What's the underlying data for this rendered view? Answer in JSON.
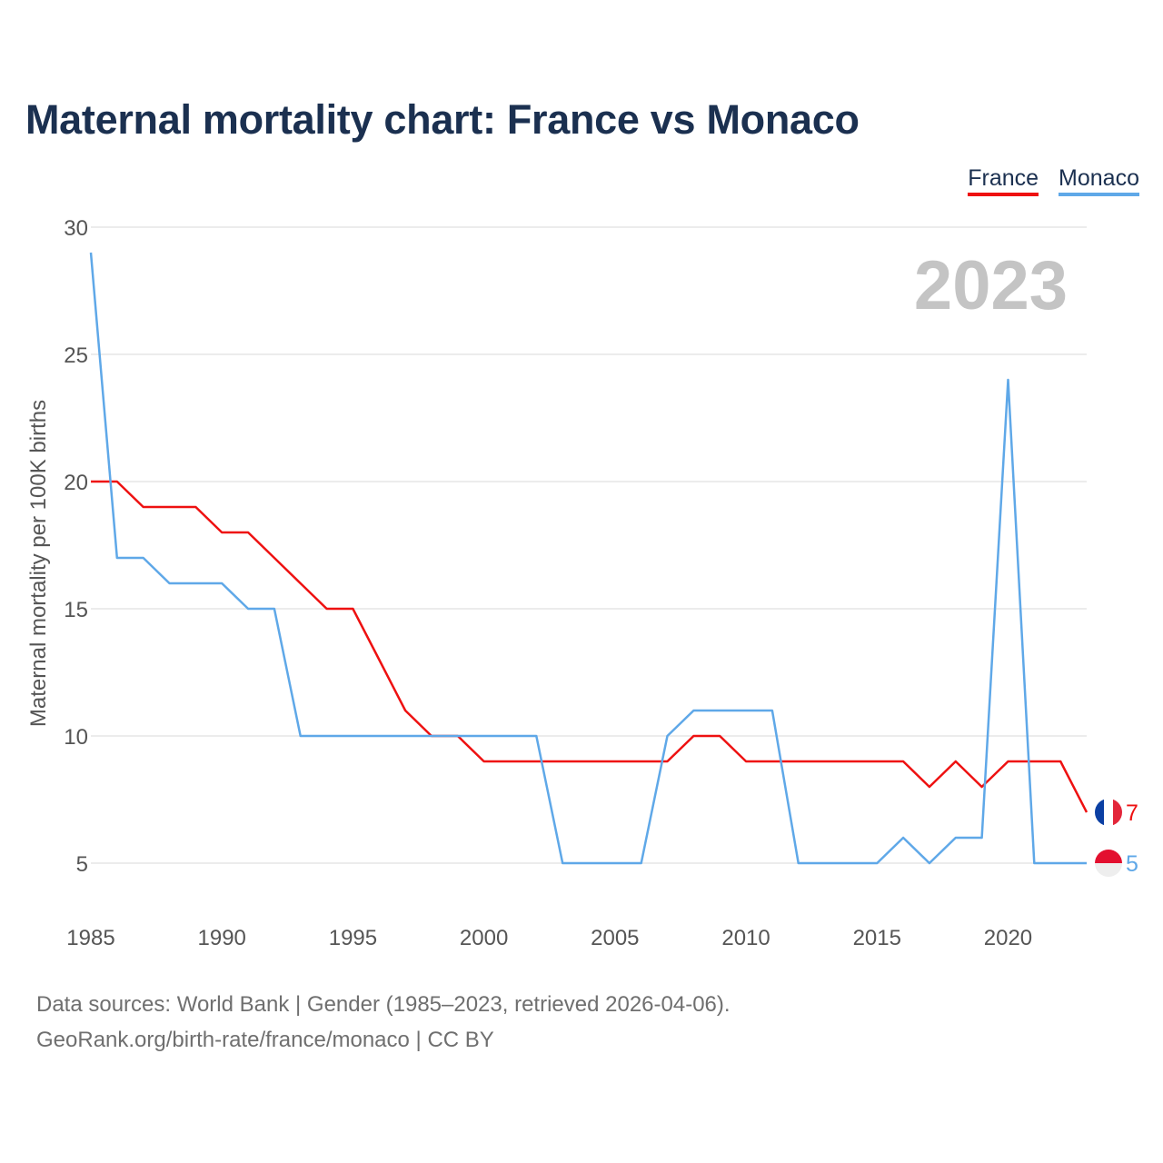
{
  "title": "Maternal mortality chart: France vs Monaco",
  "legend": [
    {
      "name": "France",
      "color": "#ee1111"
    },
    {
      "name": "Monaco",
      "color": "#5fa8e8"
    }
  ],
  "year_watermark": "2023",
  "chart_data": {
    "type": "line",
    "title": "Maternal mortality chart: France vs Monaco",
    "xlabel": "",
    "ylabel": "Maternal mortality per 100K births",
    "xlim": [
      1985,
      2023
    ],
    "ylim": [
      3,
      30
    ],
    "x_ticks": [
      1985,
      1990,
      1995,
      2000,
      2005,
      2010,
      2015,
      2020
    ],
    "y_ticks": [
      5,
      10,
      15,
      20,
      25,
      30
    ],
    "grid": true,
    "legend_position": "top-right",
    "x": [
      1985,
      1986,
      1987,
      1988,
      1989,
      1990,
      1991,
      1992,
      1993,
      1994,
      1995,
      1996,
      1997,
      1998,
      1999,
      2000,
      2001,
      2002,
      2003,
      2004,
      2005,
      2006,
      2007,
      2008,
      2009,
      2010,
      2011,
      2012,
      2013,
      2014,
      2015,
      2016,
      2017,
      2018,
      2019,
      2020,
      2021,
      2022,
      2023
    ],
    "series": [
      {
        "name": "France",
        "color": "#ee1111",
        "values": [
          20,
          20,
          19,
          19,
          19,
          18,
          18,
          17,
          16,
          15,
          15,
          13,
          11,
          10,
          10,
          9,
          9,
          9,
          9,
          9,
          9,
          9,
          9,
          10,
          10,
          9,
          9,
          9,
          9,
          9,
          9,
          9,
          8,
          9,
          8,
          9,
          9,
          9,
          7
        ],
        "end_label": "7"
      },
      {
        "name": "Monaco",
        "color": "#5fa8e8",
        "values": [
          29,
          17,
          17,
          16,
          16,
          16,
          15,
          15,
          10,
          10,
          10,
          10,
          10,
          10,
          10,
          10,
          10,
          10,
          5,
          5,
          5,
          5,
          10,
          11,
          11,
          11,
          11,
          5,
          5,
          5,
          5,
          6,
          5,
          6,
          6,
          24,
          5,
          5,
          5
        ],
        "end_label": "5"
      }
    ]
  },
  "footer": {
    "line1": "Data sources: World Bank | Gender (1985–2023, retrieved 2026-04-06).",
    "line2": "GeoRank.org/birth-rate/france/monaco | CC BY"
  }
}
